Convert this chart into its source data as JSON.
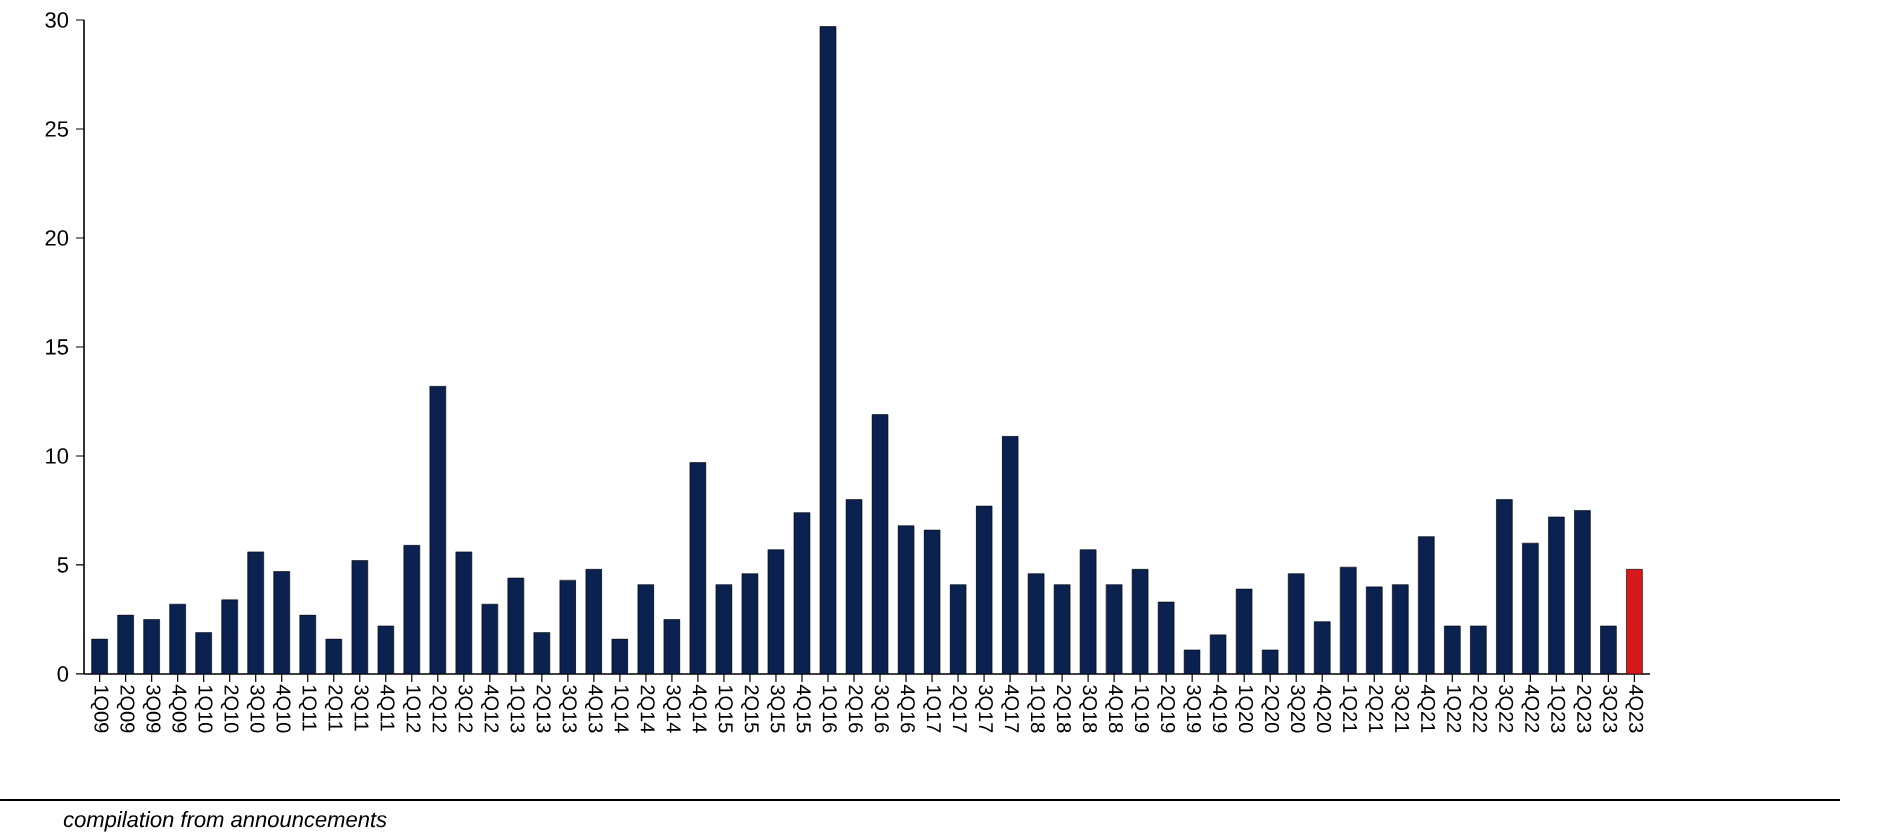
{
  "chart_data": {
    "type": "bar",
    "categories": [
      "1Q09",
      "2Q09",
      "3Q09",
      "4Q09",
      "1Q10",
      "2Q10",
      "3Q10",
      "4Q10",
      "1Q11",
      "2Q11",
      "3Q11",
      "4Q11",
      "1Q12",
      "2Q12",
      "3Q12",
      "4Q12",
      "1Q13",
      "2Q13",
      "3Q13",
      "4Q13",
      "1Q14",
      "2Q14",
      "3Q14",
      "4Q14",
      "1Q15",
      "2Q15",
      "3Q15",
      "4Q15",
      "1Q16",
      "2Q16",
      "3Q16",
      "4Q16",
      "1Q17",
      "2Q17",
      "3Q17",
      "4Q17",
      "1Q18",
      "2Q18",
      "3Q18",
      "4Q18",
      "1Q19",
      "2Q19",
      "3Q19",
      "4Q19",
      "1Q20",
      "2Q20",
      "3Q20",
      "4Q20",
      "1Q21",
      "2Q21",
      "3Q21",
      "4Q21",
      "1Q22",
      "2Q22",
      "3Q22",
      "4Q22",
      "1Q23",
      "2Q23",
      "3Q23",
      "4Q23"
    ],
    "values": [
      1.6,
      2.7,
      2.5,
      3.2,
      1.9,
      3.4,
      5.6,
      4.7,
      2.7,
      1.6,
      5.2,
      2.2,
      5.9,
      13.2,
      5.6,
      3.2,
      4.4,
      1.9,
      4.3,
      4.8,
      1.6,
      4.1,
      2.5,
      9.7,
      4.1,
      4.6,
      5.7,
      7.4,
      29.7,
      8.0,
      11.9,
      6.8,
      6.6,
      4.1,
      7.7,
      10.9,
      4.6,
      4.1,
      5.7,
      4.1,
      4.8,
      3.3,
      1.1,
      1.8,
      3.9,
      1.1,
      4.6,
      2.4,
      4.9,
      4.0,
      4.1,
      6.3,
      2.2,
      2.2,
      8.0,
      6.0,
      7.2,
      7.5,
      2.2,
      4.8
    ],
    "colors": [
      "#0b2150",
      "#0b2150",
      "#0b2150",
      "#0b2150",
      "#0b2150",
      "#0b2150",
      "#0b2150",
      "#0b2150",
      "#0b2150",
      "#0b2150",
      "#0b2150",
      "#0b2150",
      "#0b2150",
      "#0b2150",
      "#0b2150",
      "#0b2150",
      "#0b2150",
      "#0b2150",
      "#0b2150",
      "#0b2150",
      "#0b2150",
      "#0b2150",
      "#0b2150",
      "#0b2150",
      "#0b2150",
      "#0b2150",
      "#0b2150",
      "#0b2150",
      "#0b2150",
      "#0b2150",
      "#0b2150",
      "#0b2150",
      "#0b2150",
      "#0b2150",
      "#0b2150",
      "#0b2150",
      "#0b2150",
      "#0b2150",
      "#0b2150",
      "#0b2150",
      "#0b2150",
      "#0b2150",
      "#0b2150",
      "#0b2150",
      "#0b2150",
      "#0b2150",
      "#0b2150",
      "#0b2150",
      "#0b2150",
      "#0b2150",
      "#0b2150",
      "#0b2150",
      "#0b2150",
      "#0b2150",
      "#0b2150",
      "#0b2150",
      "#0b2150",
      "#0b2150",
      "#0b2150",
      "#d7191c"
    ],
    "ylim": [
      0,
      30
    ],
    "yticks": [
      0,
      5,
      10,
      15,
      20,
      25,
      30
    ],
    "annotations": [
      "compilation from announcements"
    ]
  }
}
